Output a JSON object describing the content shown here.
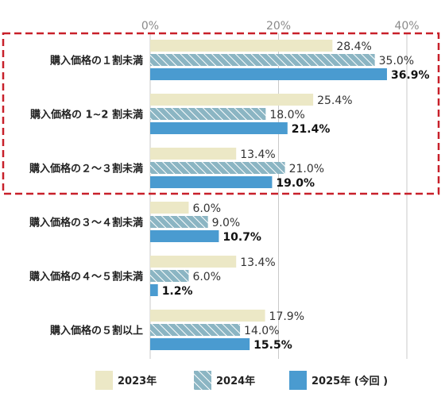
{
  "chart_data": {
    "type": "bar",
    "orientation": "horizontal",
    "categories": [
      "購入価格の１割未満",
      "購入価格の 1~2 割未満",
      "購入価格の２～３割未満",
      "購入価格の３～４割未満",
      "購入価格の４～５割未満",
      "購入価格の５割以上"
    ],
    "series": [
      {
        "name": "2023年",
        "values": [
          28.4,
          25.4,
          13.4,
          6.0,
          13.4,
          17.9
        ],
        "labels": [
          "28.4%",
          "25.4%",
          "13.4%",
          "6.0%",
          "13.4%",
          "17.9%"
        ],
        "color": "#ece8c6",
        "pattern": "solid",
        "label_bold": false
      },
      {
        "name": "2024年",
        "values": [
          35.0,
          18.0,
          21.0,
          9.0,
          6.0,
          14.0
        ],
        "labels": [
          "35.0%",
          "18.0%",
          "21.0%",
          "9.0%",
          "6.0%",
          "14.0%"
        ],
        "color": "#8bb5c3",
        "pattern": "hatch",
        "label_bold": false
      },
      {
        "name": "2025年 (今回 )",
        "values": [
          36.9,
          21.4,
          19.0,
          10.7,
          1.2,
          15.5
        ],
        "labels": [
          "36.9%",
          "21.4%",
          "19.0%",
          "10.7%",
          "1.2%",
          "15.5%"
        ],
        "color": "#4a9bd0",
        "pattern": "solid",
        "label_bold": true
      }
    ],
    "xticks": [
      "0%",
      "20%",
      "40%"
    ],
    "xlim": [
      0,
      40
    ],
    "grid": true,
    "legend": "bottom",
    "highlight": {
      "categories": [
        0,
        1,
        2
      ],
      "style": "dashed",
      "color": "#c8202a"
    }
  }
}
